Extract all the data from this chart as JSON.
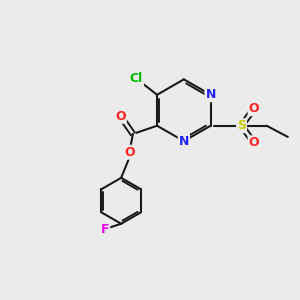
{
  "background_color": "#ebebeb",
  "bond_color": "#1a1a1a",
  "atom_colors": {
    "Cl": "#00bb00",
    "N": "#2222ff",
    "O": "#ff2222",
    "S": "#cccc00",
    "F": "#ee00ee",
    "C": "#1a1a1a"
  },
  "figsize": [
    3.0,
    3.0
  ],
  "dpi": 100
}
